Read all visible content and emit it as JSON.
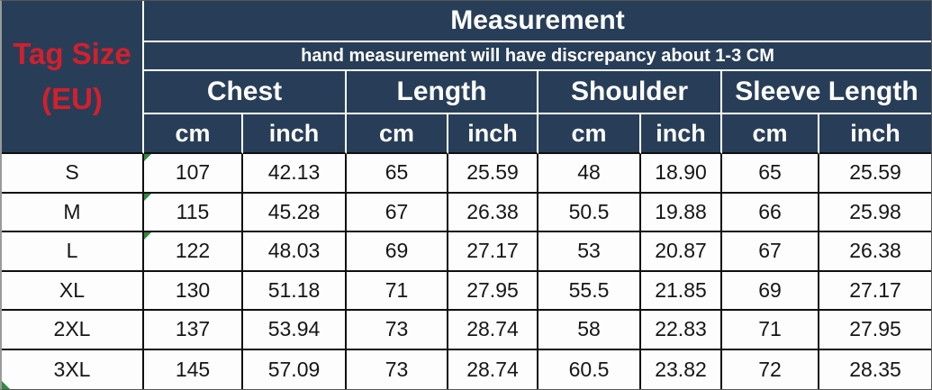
{
  "colors": {
    "header_background": "#283e58",
    "header_text": "#ffffff",
    "tag_size_text": "#d41f2c",
    "body_text": "#161616",
    "grid_line": "#101010",
    "corner_marker_green": "#2f8b3f"
  },
  "header": {
    "tag_size": {
      "line1": "Tag Size",
      "line2": "(EU)"
    },
    "title": "Measurement",
    "subtitle": "hand measurement will have discrepancy about 1-3 CM",
    "groups": [
      "Chest",
      "Length",
      "Shoulder",
      "Sleeve Length"
    ],
    "units": [
      "cm",
      "inch",
      "cm",
      "inch",
      "cm",
      "inch",
      "cm",
      "inch"
    ]
  },
  "body": {
    "rows": [
      {
        "size": "S",
        "values": [
          "107",
          "42.13",
          "65",
          "25.59",
          "48",
          "18.90",
          "65",
          "25.59"
        ]
      },
      {
        "size": "M",
        "values": [
          "115",
          "45.28",
          "67",
          "26.38",
          "50.5",
          "19.88",
          "66",
          "25.98"
        ]
      },
      {
        "size": "L",
        "values": [
          "122",
          "48.03",
          "69",
          "27.17",
          "53",
          "20.87",
          "67",
          "26.38"
        ]
      },
      {
        "size": "XL",
        "values": [
          "130",
          "51.18",
          "71",
          "27.95",
          "55.5",
          "21.85",
          "69",
          "27.17"
        ]
      },
      {
        "size": "2XL",
        "values": [
          "137",
          "53.94",
          "73",
          "28.74",
          "58",
          "22.83",
          "71",
          "27.95"
        ]
      },
      {
        "size": "3XL",
        "values": [
          "145",
          "57.09",
          "73",
          "28.74",
          "60.5",
          "23.82",
          "72",
          "28.35"
        ]
      }
    ]
  },
  "chart_data": {
    "type": "table",
    "title": "Measurement",
    "note": "hand measurement will have discrepancy about 1-3 CM",
    "row_header": "Tag Size (EU)",
    "column_groups": [
      "Chest",
      "Length",
      "Shoulder",
      "Sleeve Length"
    ],
    "columns": [
      "Tag Size (EU)",
      "Chest cm",
      "Chest inch",
      "Length cm",
      "Length inch",
      "Shoulder cm",
      "Shoulder inch",
      "Sleeve Length cm",
      "Sleeve Length inch"
    ],
    "rows": [
      [
        "S",
        "107",
        "42.13",
        "65",
        "25.59",
        "48",
        "18.90",
        "65",
        "25.59"
      ],
      [
        "M",
        "115",
        "45.28",
        "67",
        "26.38",
        "50.5",
        "19.88",
        "66",
        "25.98"
      ],
      [
        "L",
        "122",
        "48.03",
        "69",
        "27.17",
        "53",
        "20.87",
        "67",
        "26.38"
      ],
      [
        "XL",
        "130",
        "51.18",
        "71",
        "27.95",
        "55.5",
        "21.85",
        "69",
        "27.17"
      ],
      [
        "2XL",
        "137",
        "53.94",
        "73",
        "28.74",
        "58",
        "22.83",
        "71",
        "27.95"
      ],
      [
        "3XL",
        "145",
        "57.09",
        "73",
        "28.74",
        "60.5",
        "23.82",
        "72",
        "28.35"
      ]
    ]
  }
}
